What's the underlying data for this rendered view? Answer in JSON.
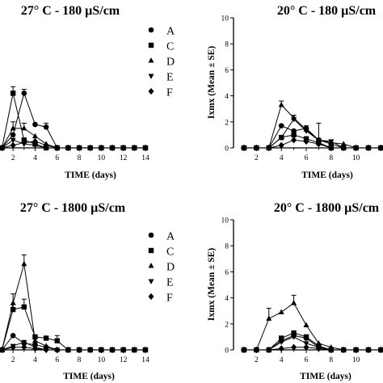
{
  "chart_data": [
    {
      "type": "line",
      "title": "27° C - 180 µS/cm",
      "xlabel": "TIME (days)",
      "ylabel": "",
      "x": [
        1,
        2,
        3,
        4,
        5,
        6,
        7,
        8,
        9,
        10,
        11,
        12,
        13,
        14
      ],
      "xticks": [
        2,
        4,
        6,
        8,
        10,
        12,
        14
      ],
      "xlim": [
        1,
        14
      ],
      "ylim": [
        0,
        10
      ],
      "legend": "top-right",
      "series": [
        {
          "name": "A",
          "marker": "circle",
          "values": [
            0,
            1.0,
            4.2,
            1.8,
            1.6,
            0,
            0,
            0,
            0,
            0,
            0,
            0,
            0,
            0
          ],
          "errors": [
            0,
            0,
            0.3,
            0,
            0.3,
            0,
            0,
            0,
            0,
            0,
            0,
            0,
            0,
            0
          ]
        },
        {
          "name": "C",
          "marker": "square",
          "values": [
            0,
            4.2,
            0.6,
            0.3,
            0,
            0,
            0,
            0,
            0,
            0,
            0,
            0,
            0,
            0
          ],
          "errors": [
            0,
            0.5,
            0,
            0,
            0,
            0,
            0,
            0,
            0,
            0,
            0,
            0,
            0,
            0
          ]
        },
        {
          "name": "D",
          "marker": "triangle-up",
          "values": [
            0,
            1.5,
            1.5,
            0.9,
            0.3,
            0,
            0,
            0,
            0,
            0,
            0,
            0,
            0,
            0
          ],
          "errors": [
            0,
            0.5,
            0.4,
            0,
            0,
            0,
            0,
            0,
            0,
            0,
            0,
            0,
            0,
            0
          ]
        },
        {
          "name": "E",
          "marker": "triangle-down",
          "values": [
            0,
            0.6,
            0.3,
            0.2,
            0,
            0,
            0,
            0,
            0,
            0,
            0,
            0,
            0,
            0
          ],
          "errors": [
            0,
            0,
            0,
            0,
            0,
            0,
            0,
            0,
            0,
            0,
            0,
            0,
            0,
            0
          ]
        },
        {
          "name": "F",
          "marker": "diamond",
          "values": [
            0,
            0.2,
            0.4,
            0.5,
            0.2,
            0,
            0,
            0,
            0,
            0,
            0,
            0,
            0,
            0
          ],
          "errors": [
            0,
            0,
            0,
            0,
            0,
            0,
            0,
            0,
            0,
            0,
            0,
            0,
            0,
            0
          ]
        }
      ]
    },
    {
      "type": "line",
      "title": "20° C - 180 µS/cm",
      "xlabel": "TIME (days)",
      "ylabel": "Ixmx (Mean ± SE)",
      "x": [
        1,
        2,
        3,
        4,
        5,
        6,
        7,
        8,
        9,
        10,
        11,
        12,
        13,
        14
      ],
      "xticks": [
        2,
        4,
        6,
        8,
        10,
        12,
        14
      ],
      "yticks": [
        0,
        2,
        4,
        6,
        8,
        10
      ],
      "xlim": [
        1,
        14
      ],
      "ylim": [
        0,
        10
      ],
      "series": [
        {
          "name": "A",
          "marker": "circle",
          "values": [
            0,
            0,
            0,
            1.7,
            1.3,
            1.5,
            0.6,
            0.3,
            0,
            0,
            0,
            0,
            0,
            0
          ],
          "errors": [
            0,
            0,
            0,
            0,
            0,
            0,
            0,
            0,
            0,
            0,
            0,
            0,
            0,
            0
          ]
        },
        {
          "name": "C",
          "marker": "square",
          "values": [
            0,
            0,
            0,
            0.8,
            1.0,
            0.7,
            0.4,
            0,
            0,
            0,
            0,
            0,
            0,
            0
          ],
          "errors": [
            0,
            0,
            0,
            0,
            0,
            0,
            0,
            0,
            0,
            0,
            0,
            0,
            0,
            0
          ]
        },
        {
          "name": "D",
          "marker": "triangle-up",
          "values": [
            0,
            0,
            0,
            3.3,
            2.3,
            1.4,
            0.6,
            0.4,
            0.3,
            0,
            0,
            0,
            0,
            0
          ],
          "errors": [
            0,
            0,
            0,
            0.3,
            0.2,
            0,
            0,
            0,
            0,
            0,
            0,
            0,
            0,
            0
          ]
        },
        {
          "name": "E",
          "marker": "triangle-down",
          "values": [
            0,
            0,
            0,
            0.8,
            2.2,
            1.3,
            0.6,
            0.5,
            0,
            0,
            0,
            0,
            0,
            0
          ],
          "errors": [
            0,
            0,
            0,
            0,
            0.3,
            0.4,
            1.3,
            0,
            0,
            0,
            0,
            0,
            0,
            0
          ]
        },
        {
          "name": "F",
          "marker": "diamond",
          "values": [
            0,
            0,
            0,
            0.2,
            0.6,
            0.5,
            0.3,
            0,
            0,
            0,
            0,
            0,
            0,
            0
          ],
          "errors": [
            0,
            0,
            0,
            0,
            0,
            0,
            0,
            0,
            0,
            0,
            0,
            0,
            0,
            0
          ]
        }
      ]
    },
    {
      "type": "line",
      "title": "27° C - 1800 µS/cm",
      "xlabel": "TIME (days)",
      "ylabel": "",
      "x": [
        1,
        2,
        3,
        4,
        5,
        6,
        7,
        8,
        9,
        10,
        11,
        12,
        13,
        14
      ],
      "xticks": [
        2,
        4,
        6,
        8,
        10,
        12,
        14
      ],
      "xlim": [
        1,
        14
      ],
      "ylim": [
        0,
        10
      ],
      "legend": "top-right",
      "series": [
        {
          "name": "A",
          "marker": "circle",
          "values": [
            0,
            1.1,
            0.5,
            0.4,
            0.2,
            0,
            0,
            0,
            0,
            0,
            0,
            0,
            0,
            0
          ],
          "errors": [
            0,
            0,
            0,
            0,
            0,
            0,
            0,
            0,
            0,
            0,
            0,
            0,
            0,
            0
          ]
        },
        {
          "name": "C",
          "marker": "square",
          "values": [
            0,
            3.1,
            3.3,
            1.0,
            0.9,
            0.7,
            0,
            0,
            0,
            0,
            0,
            0,
            0,
            0
          ],
          "errors": [
            0,
            0.4,
            0.6,
            0,
            0,
            0.4,
            0,
            0,
            0,
            0,
            0,
            0,
            0,
            0
          ]
        },
        {
          "name": "D",
          "marker": "triangle-up",
          "values": [
            0,
            3.6,
            6.6,
            0.7,
            0.3,
            0,
            0,
            0,
            0,
            0,
            0,
            0,
            0,
            0
          ],
          "errors": [
            0,
            0.7,
            0.7,
            0,
            0,
            0,
            0,
            0,
            0,
            0,
            0,
            0,
            0,
            0
          ]
        },
        {
          "name": "E",
          "marker": "triangle-down",
          "values": [
            0,
            0.3,
            0.6,
            0.2,
            0,
            0,
            0,
            0,
            0,
            0,
            0,
            0,
            0,
            0
          ],
          "errors": [
            0,
            0,
            0,
            0,
            0,
            0,
            0,
            0,
            0,
            0,
            0,
            0,
            0,
            0
          ]
        },
        {
          "name": "F",
          "marker": "diamond",
          "values": [
            0,
            0.2,
            0.2,
            0.1,
            0,
            0,
            0,
            0,
            0,
            0,
            0,
            0,
            0,
            0
          ],
          "errors": [
            0,
            0,
            0,
            0,
            0,
            0,
            0,
            0,
            0,
            0,
            0,
            0,
            0,
            0
          ]
        }
      ]
    },
    {
      "type": "line",
      "title": "20° C - 1800 µS/cm",
      "xlabel": "TIME (days)",
      "ylabel": "Ixmx (Mean ± SE)",
      "x": [
        1,
        2,
        3,
        4,
        5,
        6,
        7,
        8,
        9,
        10,
        11,
        12,
        13,
        14
      ],
      "xticks": [
        2,
        4,
        6,
        8,
        10,
        12,
        14
      ],
      "yticks": [
        0,
        2,
        4,
        6,
        8,
        10
      ],
      "xlim": [
        1,
        14
      ],
      "ylim": [
        0,
        10
      ],
      "series": [
        {
          "name": "A",
          "marker": "circle",
          "values": [
            0,
            0,
            0,
            0.7,
            1.1,
            0.9,
            0.2,
            0,
            0,
            0,
            0,
            0,
            0,
            0
          ],
          "errors": [
            0,
            0,
            0,
            0,
            0,
            0,
            0,
            0,
            0,
            0,
            0,
            0,
            0,
            0
          ]
        },
        {
          "name": "C",
          "marker": "square",
          "values": [
            0,
            0,
            0,
            0.9,
            1.3,
            1.0,
            0.3,
            0,
            0,
            0,
            0,
            0,
            0,
            0
          ],
          "errors": [
            0,
            0,
            0,
            0,
            0,
            0,
            0,
            0,
            0,
            0,
            0,
            0,
            0,
            0
          ]
        },
        {
          "name": "D",
          "marker": "triangle-up",
          "values": [
            0,
            0,
            2.4,
            2.9,
            3.6,
            1.9,
            0.5,
            0.2,
            0,
            0,
            0,
            0,
            0,
            0
          ],
          "errors": [
            0,
            0,
            0.8,
            0,
            0.6,
            0,
            0,
            0,
            0,
            0,
            0,
            0,
            0,
            0
          ]
        },
        {
          "name": "E",
          "marker": "triangle-down",
          "values": [
            0,
            0,
            0,
            0.6,
            1.0,
            0.5,
            0.2,
            0,
            0,
            0,
            0,
            0,
            0,
            0
          ],
          "errors": [
            0,
            0,
            0,
            0,
            0,
            0,
            0,
            0,
            0,
            0,
            0,
            0,
            0,
            0
          ]
        },
        {
          "name": "F",
          "marker": "diamond",
          "values": [
            0,
            0,
            0,
            0.1,
            0.2,
            0.2,
            0.1,
            0,
            0,
            0,
            0,
            0,
            0,
            0
          ],
          "errors": [
            0,
            0,
            0,
            0,
            0,
            0,
            0,
            0,
            0,
            0,
            0,
            0,
            0,
            0
          ]
        }
      ]
    }
  ]
}
